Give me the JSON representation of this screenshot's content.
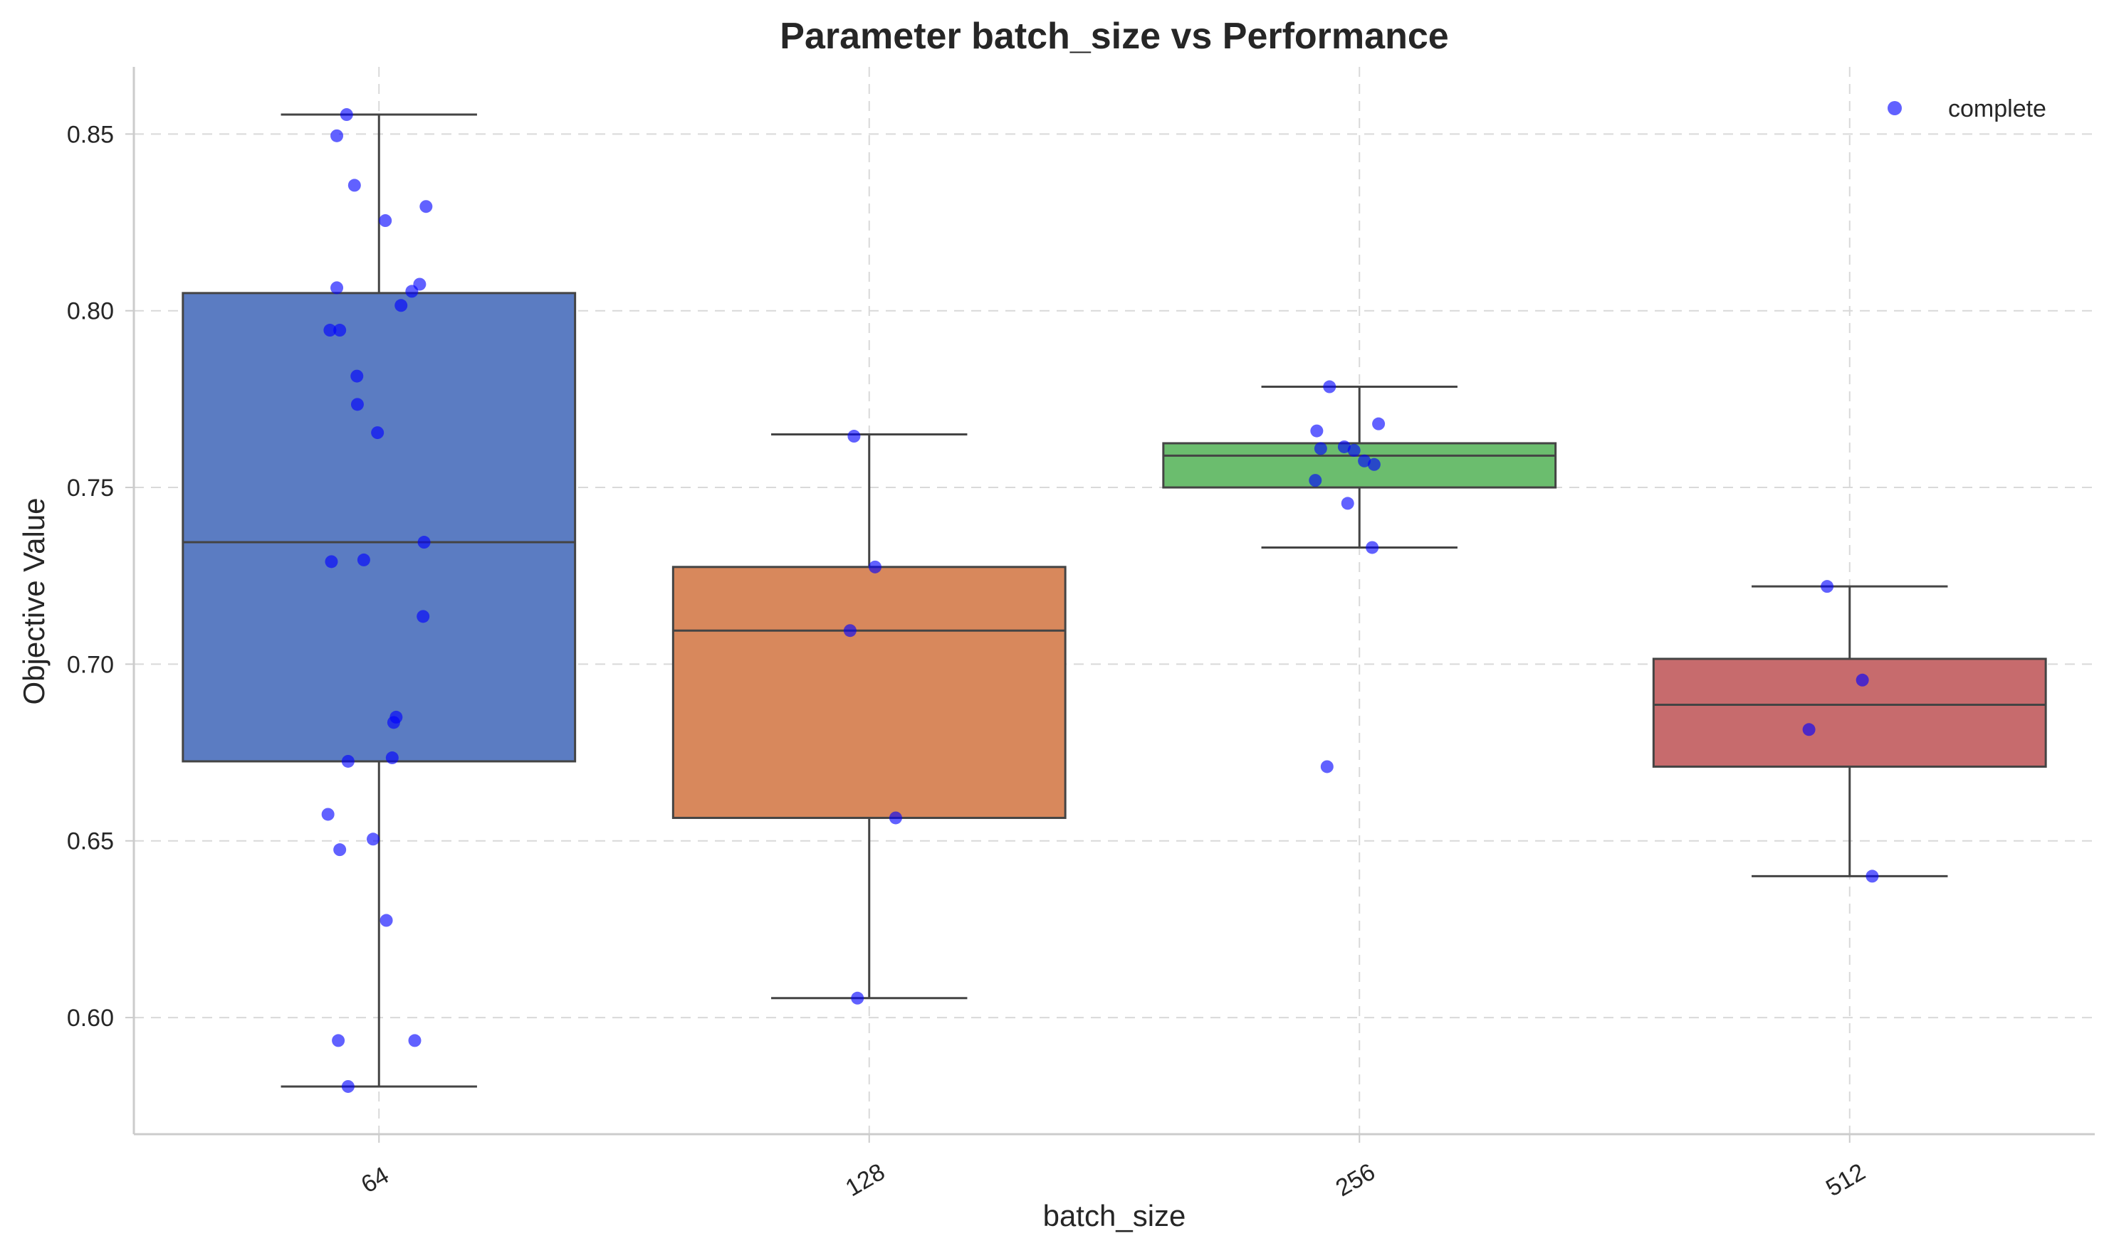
{
  "chart_data": {
    "type": "box",
    "title": "Parameter batch_size vs Performance",
    "xlabel": "batch_size",
    "ylabel": "Objective Value",
    "categories": [
      "64",
      "128",
      "256",
      "512"
    ],
    "ylim": [
      0.567,
      0.869
    ],
    "y_ticks": [
      0.6,
      0.65,
      0.7,
      0.75,
      0.8,
      0.85
    ],
    "y_tick_labels": [
      "0.60",
      "0.65",
      "0.70",
      "0.75",
      "0.80",
      "0.85"
    ],
    "grid": true,
    "legend": {
      "placement": "top-right",
      "entries": [
        {
          "label": "complete",
          "color": "#0000ff"
        }
      ]
    },
    "colors": {
      "box_64": "#5b7cc2",
      "box_128": "#d8885c",
      "box_256": "#6bbd6e",
      "box_512": "#c76b6d",
      "points": "#0000ff",
      "median_whisker": "#444444",
      "grid": "#d9d9d9",
      "axis": "#cccccc"
    },
    "boxes": [
      {
        "category": "64",
        "q1": 0.6725,
        "median": 0.7345,
        "q3": 0.805,
        "whisker_low": 0.5805,
        "whisker_high": 0.8555
      },
      {
        "category": "128",
        "q1": 0.6565,
        "median": 0.7095,
        "q3": 0.7275,
        "whisker_low": 0.6055,
        "whisker_high": 0.765
      },
      {
        "category": "256",
        "q1": 0.75,
        "median": 0.759,
        "q3": 0.7625,
        "whisker_low": 0.733,
        "whisker_high": 0.7785
      },
      {
        "category": "512",
        "q1": 0.671,
        "median": 0.6885,
        "q3": 0.7015,
        "whisker_low": 0.64,
        "whisker_high": 0.722
      }
    ],
    "series": [
      {
        "name": "complete",
        "points": [
          {
            "category": "64",
            "jitter": -0.066,
            "y": 0.8555
          },
          {
            "category": "64",
            "jitter": -0.086,
            "y": 0.8495
          },
          {
            "category": "64",
            "jitter": -0.05,
            "y": 0.8355
          },
          {
            "category": "64",
            "jitter": 0.013,
            "y": 0.8255
          },
          {
            "category": "64",
            "jitter": 0.096,
            "y": 0.8295
          },
          {
            "category": "64",
            "jitter": -0.086,
            "y": 0.8065
          },
          {
            "category": "64",
            "jitter": 0.083,
            "y": 0.8075
          },
          {
            "category": "64",
            "jitter": 0.067,
            "y": 0.8055
          },
          {
            "category": "64",
            "jitter": 0.045,
            "y": 0.8015
          },
          {
            "category": "64",
            "jitter": -0.1,
            "y": 0.7945
          },
          {
            "category": "64",
            "jitter": -0.08,
            "y": 0.7945
          },
          {
            "category": "64",
            "jitter": -0.045,
            "y": 0.7815
          },
          {
            "category": "64",
            "jitter": -0.044,
            "y": 0.7735
          },
          {
            "category": "64",
            "jitter": -0.003,
            "y": 0.7655
          },
          {
            "category": "64",
            "jitter": -0.097,
            "y": 0.729
          },
          {
            "category": "64",
            "jitter": -0.031,
            "y": 0.7295
          },
          {
            "category": "64",
            "jitter": 0.092,
            "y": 0.7345
          },
          {
            "category": "64",
            "jitter": 0.09,
            "y": 0.7135
          },
          {
            "category": "64",
            "jitter": 0.035,
            "y": 0.685
          },
          {
            "category": "64",
            "jitter": 0.03,
            "y": 0.6835
          },
          {
            "category": "64",
            "jitter": -0.063,
            "y": 0.6725
          },
          {
            "category": "64",
            "jitter": 0.027,
            "y": 0.6735
          },
          {
            "category": "64",
            "jitter": -0.104,
            "y": 0.6575
          },
          {
            "category": "64",
            "jitter": -0.08,
            "y": 0.6475
          },
          {
            "category": "64",
            "jitter": -0.012,
            "y": 0.6505
          },
          {
            "category": "64",
            "jitter": 0.015,
            "y": 0.6275
          },
          {
            "category": "64",
            "jitter": -0.083,
            "y": 0.5935
          },
          {
            "category": "64",
            "jitter": 0.073,
            "y": 0.5935
          },
          {
            "category": "64",
            "jitter": -0.063,
            "y": 0.5805
          },
          {
            "category": "128",
            "jitter": -0.031,
            "y": 0.7645
          },
          {
            "category": "128",
            "jitter": 0.012,
            "y": 0.7275
          },
          {
            "category": "128",
            "jitter": -0.039,
            "y": 0.7095
          },
          {
            "category": "128",
            "jitter": 0.054,
            "y": 0.6565
          },
          {
            "category": "128",
            "jitter": -0.024,
            "y": 0.6055
          },
          {
            "category": "256",
            "jitter": -0.061,
            "y": 0.7785
          },
          {
            "category": "256",
            "jitter": -0.087,
            "y": 0.766
          },
          {
            "category": "256",
            "jitter": 0.039,
            "y": 0.768
          },
          {
            "category": "256",
            "jitter": -0.079,
            "y": 0.761
          },
          {
            "category": "256",
            "jitter": -0.031,
            "y": 0.7615
          },
          {
            "category": "256",
            "jitter": -0.011,
            "y": 0.7605
          },
          {
            "category": "256",
            "jitter": 0.01,
            "y": 0.7575
          },
          {
            "category": "256",
            "jitter": 0.03,
            "y": 0.7565
          },
          {
            "category": "256",
            "jitter": -0.09,
            "y": 0.752
          },
          {
            "category": "256",
            "jitter": -0.024,
            "y": 0.7455
          },
          {
            "category": "256",
            "jitter": 0.026,
            "y": 0.733
          },
          {
            "category": "256",
            "jitter": -0.066,
            "y": 0.671
          },
          {
            "category": "512",
            "jitter": -0.046,
            "y": 0.722
          },
          {
            "category": "512",
            "jitter": 0.026,
            "y": 0.6955
          },
          {
            "category": "512",
            "jitter": -0.083,
            "y": 0.6815
          },
          {
            "category": "512",
            "jitter": 0.046,
            "y": 0.64
          }
        ]
      }
    ]
  }
}
